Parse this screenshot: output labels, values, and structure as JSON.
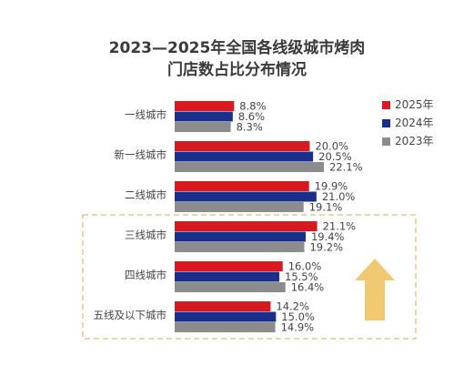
{
  "chart_data": {
    "type": "bar",
    "orientation": "horizontal",
    "title": "2023—2025年全国各线级城市烤肉门店数占比分布情况",
    "title_lines": [
      "2023—2025年全国各线级城市烤肉",
      "门店数占比分布情况"
    ],
    "categories": [
      "一线城市",
      "新一线城市",
      "二线城市",
      "三线城市",
      "四线城市",
      "五线及以下城市"
    ],
    "series": [
      {
        "name": "2025年",
        "color": "#d9181f",
        "values": [
          8.8,
          20.0,
          19.9,
          21.1,
          16.0,
          14.2
        ],
        "labels": [
          "8.8%",
          "20.0%",
          "19.9%",
          "21.1%",
          "16.0%",
          "14.2%"
        ]
      },
      {
        "name": "2024年",
        "color": "#1a2f8c",
        "values": [
          8.6,
          20.5,
          21.0,
          19.4,
          15.5,
          15.0
        ],
        "labels": [
          "8.6%",
          "20.5%",
          "21.0%",
          "19.4%",
          "15.5%",
          "15.0%"
        ]
      },
      {
        "name": "2023年",
        "color": "#8c8c8c",
        "values": [
          8.3,
          22.1,
          19.1,
          19.2,
          16.4,
          14.9
        ],
        "labels": [
          "8.3%",
          "22.1%",
          "19.1%",
          "19.2%",
          "16.4%",
          "14.9%"
        ]
      }
    ],
    "xlim": [
      0,
      22.1
    ],
    "legend_position": "top-right",
    "grid": false,
    "highlight_group": [
      "三线城市",
      "四线城市",
      "五线及以下城市"
    ],
    "highlight_color": "#e8c783",
    "arrow_color": "#f0bf5a"
  }
}
